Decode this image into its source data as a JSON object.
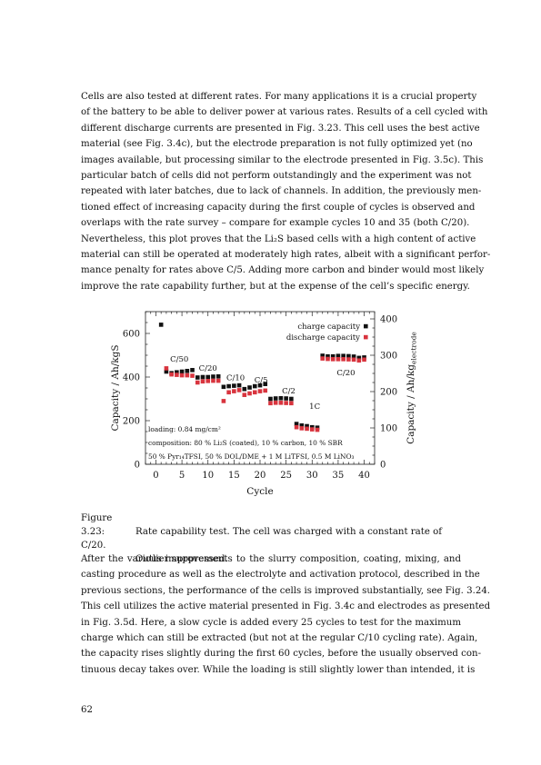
{
  "paragraph1": [
    "Cells are also tested at different rates. For many applications it is a crucial property",
    "of the battery to be able to deliver power at various rates. Results of a cell cycled with",
    "different discharge currents are presented in Fig. 3.23. This cell uses the best active",
    "material (see Fig. 3.4c), but the electrode preparation is not fully optimized yet (no",
    "images available, but processing similar to the electrode presented in Fig. 3.5c). This",
    "particular batch of cells did not perform outstandingly and the experiment was not",
    "repeated with later batches, due to lack of channels. In addition, the previously men-",
    "tioned effect of increasing capacity during the first couple of cycles is observed and",
    "overlaps with the rate survey – compare for example cycles 10 and 35 (both C/20).",
    "Nevertheless, this plot proves that the Li₂S based cells with a high content of active",
    "material can still be operated at moderately high rates, albeit with a significant perfor-",
    "mance penalty for rates above C/5. Adding more carbon and binder would most likely",
    "improve the rate capability further, but at the expense of the cell’s specific energy."
  ],
  "caption": {
    "label": "Figure 3.23:",
    "line1": "Rate capability test.  The cell was charged with a constant rate of C/20.",
    "line2": "Outlier suppressed."
  },
  "paragraph2": [
    "After the various improvements to the slurry composition, coating, mixing, and",
    "casting procedure as well as the electrolyte and activation protocol, described in the",
    "previous sections, the performance of the cells is improved substantially, see Fig. 3.24.",
    "This cell utilizes the active material presented in Fig. 3.4c and electrodes as presented",
    "in Fig. 3.5d.  Here, a slow cycle is added every 25 cycles to test for the maximum",
    "charge which can still be extracted (but not at the regular C/10 cycling rate).  Again,",
    "the capacity rises slightly during the first 60 cycles, before the usually observed con-",
    "tinuous decay takes over. While the loading is still slightly lower than intended, it is"
  ],
  "page_number": "62",
  "chart_data": {
    "type": "scatter",
    "xlabel": "Cycle",
    "ylabel_left": "Capacity / Ah/kgS",
    "ylabel_right_main": "Capacity / Ah/kg",
    "ylabel_right_sub": "electrode",
    "xlim": [
      -2,
      42
    ],
    "ylim_left": [
      0,
      700
    ],
    "ylim_right": [
      0,
      420
    ],
    "xticks": [
      "0",
      "5",
      "10",
      "15",
      "20",
      "25",
      "30",
      "35",
      "40"
    ],
    "yticks_left": [
      "0",
      "200",
      "400",
      "600"
    ],
    "yticks_right": [
      "0",
      "100",
      "200",
      "300",
      "400"
    ],
    "legend_position": "top-right",
    "colors": {
      "charge": "#111111",
      "discharge": "#d8343e"
    },
    "series": [
      {
        "name": "charge capacity",
        "x": [
          1,
          2,
          3,
          4,
          5,
          6,
          7,
          8,
          9,
          10,
          11,
          12,
          13,
          14,
          15,
          16,
          17,
          18,
          19,
          20,
          21,
          22,
          23,
          24,
          25,
          26,
          27,
          28,
          29,
          30,
          31,
          32,
          33,
          34,
          35,
          36,
          37,
          38,
          39,
          40
        ],
        "y": [
          640,
          425,
          418,
          422,
          425,
          428,
          432,
          398,
          400,
          400,
          402,
          403,
          355,
          358,
          360,
          362,
          345,
          352,
          358,
          362,
          368,
          300,
          302,
          303,
          302,
          300,
          185,
          178,
          175,
          170,
          168,
          498,
          495,
          495,
          497,
          497,
          496,
          494,
          488,
          490
        ]
      },
      {
        "name": "discharge capacity",
        "x": [
          2,
          3,
          4,
          5,
          6,
          7,
          8,
          9,
          10,
          11,
          12,
          13,
          14,
          15,
          16,
          17,
          18,
          19,
          20,
          21,
          22,
          23,
          24,
          25,
          26,
          27,
          28,
          29,
          30,
          31,
          32,
          33,
          34,
          35,
          36,
          37,
          38,
          39,
          40
        ],
        "y": [
          440,
          412,
          410,
          408,
          408,
          406,
          375,
          380,
          382,
          383,
          383,
          290,
          330,
          335,
          340,
          318,
          325,
          330,
          335,
          338,
          280,
          282,
          282,
          281,
          280,
          170,
          165,
          163,
          160,
          158,
          485,
          483,
          482,
          482,
          482,
          481,
          480,
          476,
          480
        ]
      }
    ],
    "annotations": [
      {
        "text": "C/50",
        "x": 4.5,
        "y": 470
      },
      {
        "text": "C/20",
        "x": 10,
        "y": 430
      },
      {
        "text": "C/10",
        "x": 15.3,
        "y": 385
      },
      {
        "text": "C/5",
        "x": 20.2,
        "y": 375
      },
      {
        "text": "C/2",
        "x": 25.5,
        "y": 325
      },
      {
        "text": "1C",
        "x": 30.5,
        "y": 255
      },
      {
        "text": "C/20",
        "x": 36.5,
        "y": 408
      }
    ],
    "info_text": {
      "loading": "loading: 0.84 mg/cm²",
      "composition": "composition: 80 % Li₂S (coated), 10 % carbon, 10 % SBR",
      "electrolyte": "50 % Pyr₁₄TFSI, 50 % DOL/DME + 1 M LiTFSI, 0.5 M LiNO₃"
    }
  }
}
